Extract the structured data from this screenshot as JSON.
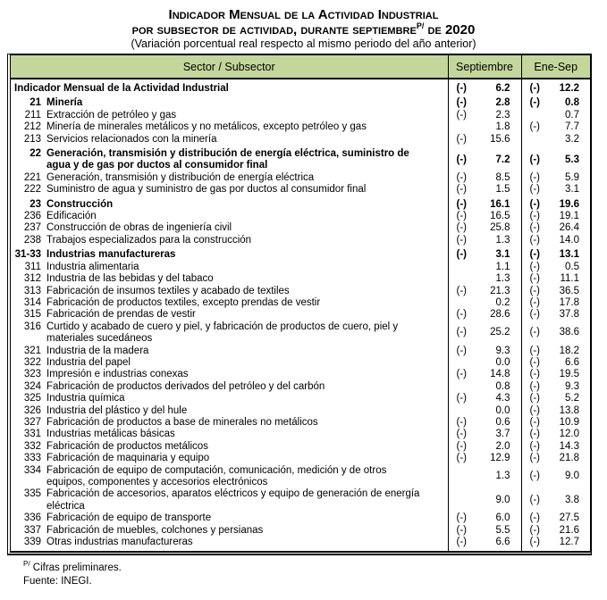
{
  "title": {
    "line1": "Indicador Mensual de la Actividad Industrial",
    "line2_prefix": "por subsector de actividad, durante septiembre",
    "line2_sup": "P/",
    "line2_suffix": " de 2020",
    "line3": "(Variación porcentual real respecto al mismo periodo del año anterior)"
  },
  "colors": {
    "header_bg": "#c4d79b",
    "border": "#000000",
    "text": "#000000"
  },
  "table": {
    "neg_symbol": "(-)",
    "header": {
      "sector": "Sector / Subsector",
      "septiembre": "Septiembre",
      "ene_sep": "Ene-Sep"
    },
    "rows": [
      {
        "code": "",
        "name": "Indicador Mensual de la Actividad Industrial",
        "bold": true,
        "sept_neg": true,
        "sept": "6.2",
        "ene_neg": true,
        "ene": "12.2"
      },
      {
        "code": "21",
        "name": "Minería",
        "bold": true,
        "sept_neg": true,
        "sept": "2.8",
        "ene_neg": true,
        "ene": "0.8"
      },
      {
        "code": "211",
        "name": "Extracción de petróleo y gas",
        "bold": false,
        "sept_neg": true,
        "sept": "2.3",
        "ene_neg": false,
        "ene": "0.7"
      },
      {
        "code": "212",
        "name": "Minería de minerales metálicos y no metálicos, excepto petróleo y gas",
        "bold": false,
        "sept_neg": false,
        "sept": "1.8",
        "ene_neg": true,
        "ene": "7.7"
      },
      {
        "code": "213",
        "name": "Servicios relacionados con la minería",
        "bold": false,
        "sept_neg": true,
        "sept": "15.6",
        "ene_neg": false,
        "ene": "3.2"
      },
      {
        "code": "22",
        "name": "Generación, transmisión y distribución de energía eléctrica, suministro de",
        "name2": "agua y de gas por ductos al consumidor final",
        "bold": true,
        "sept_neg": true,
        "sept": "7.2",
        "ene_neg": true,
        "ene": "5.3"
      },
      {
        "code": "221",
        "name": "Generación, transmisión y distribución de energía eléctrica",
        "bold": false,
        "sept_neg": true,
        "sept": "8.5",
        "ene_neg": true,
        "ene": "5.9"
      },
      {
        "code": "222",
        "name": "Suministro de agua y suministro de gas por ductos al consumidor final",
        "bold": false,
        "sept_neg": true,
        "sept": "1.5",
        "ene_neg": true,
        "ene": "3.1"
      },
      {
        "code": "23",
        "name": "Construcción",
        "bold": true,
        "sept_neg": true,
        "sept": "16.1",
        "ene_neg": true,
        "ene": "19.6"
      },
      {
        "code": "236",
        "name": "Edificación",
        "bold": false,
        "sept_neg": true,
        "sept": "16.5",
        "ene_neg": true,
        "ene": "19.1"
      },
      {
        "code": "237",
        "name": "Construcción de obras de ingeniería civil",
        "bold": false,
        "sept_neg": true,
        "sept": "25.8",
        "ene_neg": true,
        "ene": "26.4"
      },
      {
        "code": "238",
        "name": "Trabajos especializados para la construcción",
        "bold": false,
        "sept_neg": true,
        "sept": "1.3",
        "ene_neg": true,
        "ene": "14.0"
      },
      {
        "code": "31-33",
        "name": "Industrias manufactureras",
        "bold": true,
        "sept_neg": true,
        "sept": "3.1",
        "ene_neg": true,
        "ene": "13.1"
      },
      {
        "code": "311",
        "name": "Industria alimentaria",
        "bold": false,
        "sept_neg": false,
        "sept": "1.1",
        "ene_neg": true,
        "ene": "0.5"
      },
      {
        "code": "312",
        "name": "Industria de las bebidas y del tabaco",
        "bold": false,
        "sept_neg": false,
        "sept": "1.3",
        "ene_neg": true,
        "ene": "11.1"
      },
      {
        "code": "313",
        "name": "Fabricación de insumos textiles y acabado de textiles",
        "bold": false,
        "sept_neg": true,
        "sept": "21.3",
        "ene_neg": true,
        "ene": "36.5"
      },
      {
        "code": "314",
        "name": "Fabricación de productos textiles, excepto prendas de vestir",
        "bold": false,
        "sept_neg": false,
        "sept": "0.2",
        "ene_neg": true,
        "ene": "17.8"
      },
      {
        "code": "315",
        "name": "Fabricación de prendas de vestir",
        "bold": false,
        "sept_neg": true,
        "sept": "28.6",
        "ene_neg": true,
        "ene": "37.8"
      },
      {
        "code": "316",
        "name": "Curtido y acabado de cuero y piel, y fabricación de productos de cuero, piel y",
        "name2": "materiales sucedáneos",
        "bold": false,
        "sept_neg": true,
        "sept": "25.2",
        "ene_neg": true,
        "ene": "38.6"
      },
      {
        "code": "321",
        "name": "Industria de la madera",
        "bold": false,
        "sept_neg": true,
        "sept": "9.3",
        "ene_neg": true,
        "ene": "18.2"
      },
      {
        "code": "322",
        "name": "Industria del papel",
        "bold": false,
        "sept_neg": false,
        "sept": "0.0",
        "ene_neg": true,
        "ene": "6.6"
      },
      {
        "code": "323",
        "name": "Impresión e industrias conexas",
        "bold": false,
        "sept_neg": true,
        "sept": "14.8",
        "ene_neg": true,
        "ene": "19.5"
      },
      {
        "code": "324",
        "name": "Fabricación de productos derivados del petróleo y del carbón",
        "bold": false,
        "sept_neg": false,
        "sept": "0.8",
        "ene_neg": true,
        "ene": "9.3"
      },
      {
        "code": "325",
        "name": "Industria química",
        "bold": false,
        "sept_neg": true,
        "sept": "4.3",
        "ene_neg": true,
        "ene": "5.2"
      },
      {
        "code": "326",
        "name": "Industria del plástico y del hule",
        "bold": false,
        "sept_neg": false,
        "sept": "0.0",
        "ene_neg": true,
        "ene": "13.8"
      },
      {
        "code": "327",
        "name": "Fabricación de productos a base de minerales no metálicos",
        "bold": false,
        "sept_neg": true,
        "sept": "0.6",
        "ene_neg": true,
        "ene": "10.9"
      },
      {
        "code": "331",
        "name": "Industrias metálicas básicas",
        "bold": false,
        "sept_neg": true,
        "sept": "3.7",
        "ene_neg": true,
        "ene": "12.0"
      },
      {
        "code": "332",
        "name": "Fabricación de productos metálicos",
        "bold": false,
        "sept_neg": true,
        "sept": "2.0",
        "ene_neg": true,
        "ene": "14.3"
      },
      {
        "code": "333",
        "name": "Fabricación de maquinaria y equipo",
        "bold": false,
        "sept_neg": true,
        "sept": "12.9",
        "ene_neg": true,
        "ene": "21.8"
      },
      {
        "code": "334",
        "name": "Fabricación de equipo de computación, comunicación, medición y de otros",
        "name2": "equipos, componentes y accesorios electrónicos",
        "bold": false,
        "sept_neg": false,
        "sept": "1.3",
        "ene_neg": true,
        "ene": "9.0"
      },
      {
        "code": "335",
        "name": "Fabricación de accesorios, aparatos eléctricos y equipo de generación de energía",
        "name2": "eléctrica",
        "bold": false,
        "sept_neg": false,
        "sept": "9.0",
        "ene_neg": true,
        "ene": "3.8"
      },
      {
        "code": "336",
        "name": "Fabricación de equipo de transporte",
        "bold": false,
        "sept_neg": true,
        "sept": "6.0",
        "ene_neg": true,
        "ene": "27.5"
      },
      {
        "code": "337",
        "name": "Fabricación de muebles, colchones y persianas",
        "bold": false,
        "sept_neg": true,
        "sept": "5.5",
        "ene_neg": true,
        "ene": "21.6"
      },
      {
        "code": "339",
        "name": "Otras industrias manufactureras",
        "bold": false,
        "sept_neg": true,
        "sept": "6.6",
        "ene_neg": true,
        "ene": "12.7"
      }
    ]
  },
  "footnotes": {
    "sup": "P/",
    "line1": " Cifras preliminares.",
    "line2": "Fuente: INEGI."
  }
}
